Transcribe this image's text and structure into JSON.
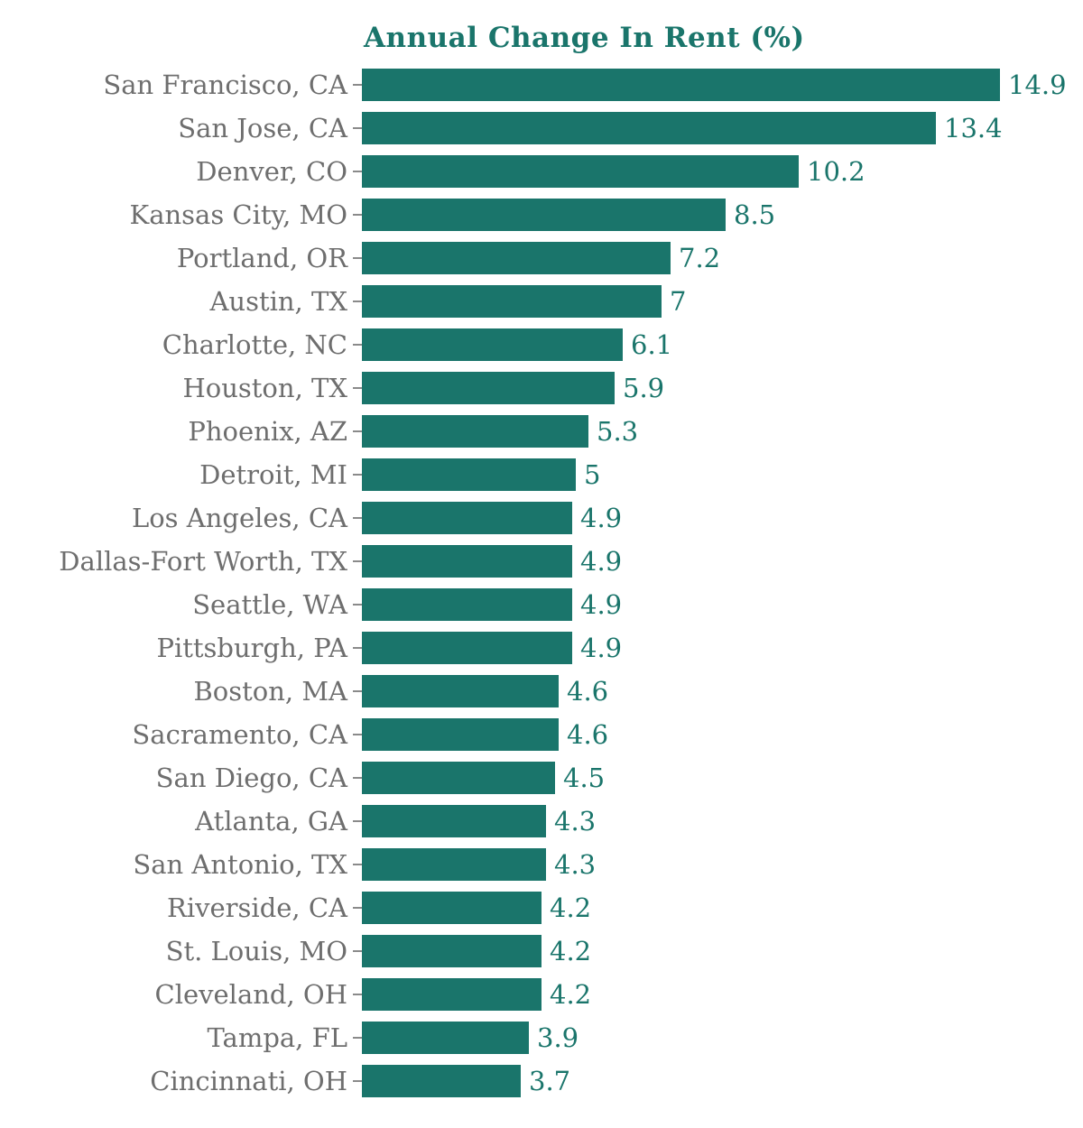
{
  "colors": {
    "bar": "#1a756b",
    "title": "#1a756b",
    "category_label": "#6e6e6e",
    "value_label": "#1a756b",
    "background": "#ffffff"
  },
  "chart_data": {
    "type": "bar",
    "orientation": "horizontal",
    "title": "Annual Change In Rent (%)",
    "xlabel": "",
    "ylabel": "",
    "xlim": [
      0,
      15
    ],
    "grid": false,
    "legend": false,
    "value_labels": true,
    "categories": [
      "San Francisco, CA",
      "San Jose, CA",
      "Denver, CO",
      "Kansas City, MO",
      "Portland, OR",
      "Austin, TX",
      "Charlotte, NC",
      "Houston, TX",
      "Phoenix, AZ",
      "Detroit, MI",
      "Los Angeles, CA",
      "Dallas-Fort Worth, TX",
      "Seattle, WA",
      "Pittsburgh, PA",
      "Boston, MA",
      "Sacramento, CA",
      "San Diego, CA",
      "Atlanta, GA",
      "San Antonio, TX",
      "Riverside, CA",
      "St. Louis, MO",
      "Cleveland, OH",
      "Tampa, FL",
      "Cincinnati, OH"
    ],
    "values": [
      14.9,
      13.4,
      10.2,
      8.5,
      7.2,
      7,
      6.1,
      5.9,
      5.3,
      5,
      4.9,
      4.9,
      4.9,
      4.9,
      4.6,
      4.6,
      4.5,
      4.3,
      4.3,
      4.2,
      4.2,
      4.2,
      3.9,
      3.7
    ]
  }
}
